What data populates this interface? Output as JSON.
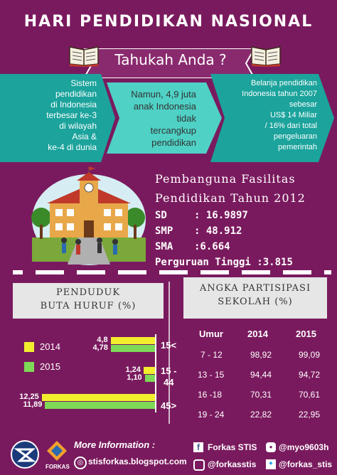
{
  "header": {
    "title": "HARI PENDIDIKAN NASIONAL",
    "subtitle": "Tahukah Anda ?"
  },
  "facts": [
    {
      "text_lines": [
        "Sistem",
        "pendidikan",
        "di Indonesia",
        "terbesar ke-3",
        "di wilayah",
        "Asia &",
        "ke-4 di dunia"
      ]
    },
    {
      "text_lines": [
        "Namun, 4,9 juta",
        "anak Indonesia",
        "tidak",
        "tercangkup",
        "pendidikan"
      ]
    },
    {
      "text_lines": [
        "Belanja pendidikan",
        "Indonesia tahun 2007",
        "sebesar",
        "US$ 14 Miliar",
        "/ 16% dari total",
        "pengeluaran",
        "pemerintah"
      ]
    }
  ],
  "facilities": {
    "title_line1": "Pembanguna Fasilitas",
    "title_line2": "Pendidikan Tahun 2012",
    "rows": [
      {
        "key": "SD",
        "value": ": 16.9897"
      },
      {
        "key": "SMP",
        "value": ": 48.912"
      },
      {
        "key": "SMA",
        "value": ":6.664"
      },
      {
        "key": "Perguruan Tinggi",
        "value": ":3.815"
      }
    ]
  },
  "illiteracy": {
    "title_line1": "PENDUDUK",
    "title_line2": "BUTA HURUF (%)",
    "legend": [
      {
        "label": "2014",
        "color": "#f2ee2e"
      },
      {
        "label": "2015",
        "color": "#7ed957"
      }
    ],
    "groups": [
      {
        "age": "15<",
        "v2014": "4,8",
        "v2015": "4,78"
      },
      {
        "age": "15 -\n44",
        "age_a": "15 -",
        "age_b": "44",
        "v2014": "1,24",
        "v2015": "1,10"
      },
      {
        "age": "45>",
        "v2014": "12,25",
        "v2015": "11,89"
      }
    ]
  },
  "chart_data": {
    "type": "bar",
    "title": "PENDUDUK BUTA HURUF (%)",
    "categories": [
      "15<",
      "15 - 44",
      "45>"
    ],
    "series": [
      {
        "name": "2014",
        "values": [
          4.8,
          1.24,
          12.25
        ]
      },
      {
        "name": "2015",
        "values": [
          4.78,
          1.1,
          11.89
        ]
      }
    ]
  },
  "participation": {
    "title_line1": "ANGKA PARTISIPASI",
    "title_line2": "SEKOLAH (%)",
    "headers": [
      "Umur",
      "2014",
      "2015"
    ],
    "rows": [
      [
        "7 - 12",
        "98,92",
        "99,09"
      ],
      [
        "13 - 15",
        "94,44",
        "94,72"
      ],
      [
        "16 -18",
        "70,31",
        "70,61"
      ],
      [
        "19 - 24",
        "22,82",
        "22,95"
      ]
    ]
  },
  "footer": {
    "more_info": "More Information :",
    "blog": "stisforkas.blogspot.com",
    "facebook": "Forkas STIS",
    "line": "@myo9603h",
    "instagram": "@forkasstis",
    "twitter": "@forkas_stis",
    "logo_forkas": "FORKAS"
  },
  "colors": {
    "background": "#7a1a5e",
    "teal": "#1ba39c",
    "teal_light": "#4fd1c5",
    "yellow": "#f2ee2e",
    "green": "#7ed957"
  }
}
